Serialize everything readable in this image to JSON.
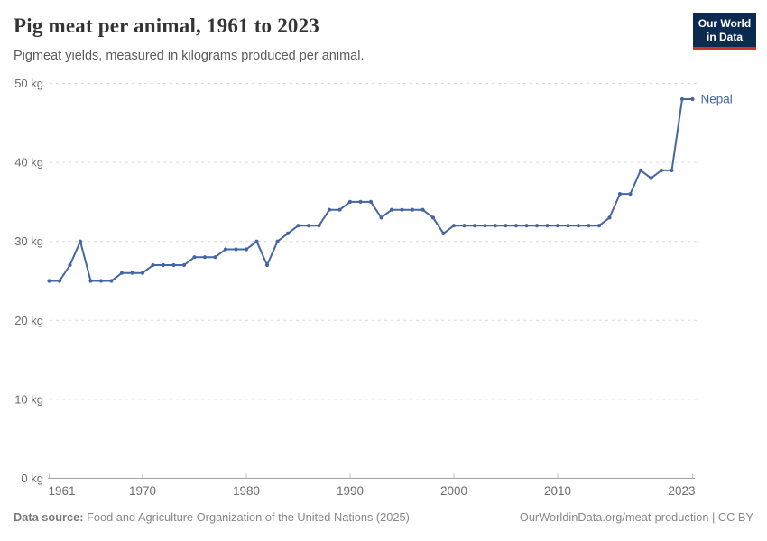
{
  "header": {
    "title": "Pig meat per animal, 1961 to 2023",
    "subtitle": "Pigmeat yields, measured in kilograms produced per animal."
  },
  "logo": {
    "line1": "Our World",
    "line2": "in Data",
    "bg_color": "#0c2a50",
    "bar_color": "#d0332a"
  },
  "chart_data": {
    "type": "line",
    "title": "Pig meat per animal, 1961 to 2023",
    "subtitle": "Pigmeat yields, measured in kilograms produced per animal.",
    "unit": "kg",
    "xlim": [
      1961,
      2023
    ],
    "ylim": [
      0,
      50
    ],
    "grid": true,
    "legend": "end-label",
    "yticks": [
      {
        "value": 0,
        "label": "0 kg"
      },
      {
        "value": 10,
        "label": "10 kg"
      },
      {
        "value": 20,
        "label": "20 kg"
      },
      {
        "value": 30,
        "label": "30 kg"
      },
      {
        "value": 40,
        "label": "40 kg"
      },
      {
        "value": 50,
        "label": "50 kg"
      }
    ],
    "xticks": [
      {
        "value": 1961,
        "label": "1961"
      },
      {
        "value": 1970,
        "label": "1970"
      },
      {
        "value": 1980,
        "label": "1980"
      },
      {
        "value": 1990,
        "label": "1990"
      },
      {
        "value": 2000,
        "label": "2000"
      },
      {
        "value": 2010,
        "label": "2010"
      },
      {
        "value": 2023,
        "label": "2023"
      }
    ],
    "series": [
      {
        "name": "Nepal",
        "color": "#4565a3",
        "x": [
          1961,
          1962,
          1963,
          1964,
          1965,
          1966,
          1967,
          1968,
          1969,
          1970,
          1971,
          1972,
          1973,
          1974,
          1975,
          1976,
          1977,
          1978,
          1979,
          1980,
          1981,
          1982,
          1983,
          1984,
          1985,
          1986,
          1987,
          1988,
          1989,
          1990,
          1991,
          1992,
          1993,
          1994,
          1995,
          1996,
          1997,
          1998,
          1999,
          2000,
          2001,
          2002,
          2003,
          2004,
          2005,
          2006,
          2007,
          2008,
          2009,
          2010,
          2011,
          2012,
          2013,
          2014,
          2015,
          2016,
          2017,
          2018,
          2019,
          2020,
          2021,
          2022,
          2023
        ],
        "values": [
          25,
          25,
          27,
          30,
          25,
          25,
          25,
          26,
          26,
          26,
          27,
          27,
          27,
          27,
          28,
          28,
          28,
          29,
          29,
          29,
          30,
          27,
          30,
          31,
          32,
          32,
          32,
          34,
          34,
          35,
          35,
          35,
          33,
          34,
          34,
          34,
          34,
          33,
          31,
          32,
          32,
          32,
          32,
          32,
          32,
          32,
          32,
          32,
          32,
          32,
          32,
          32,
          32,
          32,
          33,
          36,
          36,
          39,
          38,
          39,
          39,
          48,
          48
        ]
      }
    ],
    "axis_color": "#a3a3a3",
    "grid_color": "#d9d9d9",
    "tick_label_color": "#6d6d6d"
  },
  "footer": {
    "source_label": "Data source:",
    "source_text": " Food and Agriculture Organization of the United Nations (2025)",
    "credit": "OurWorldinData.org/meat-production | CC BY"
  }
}
